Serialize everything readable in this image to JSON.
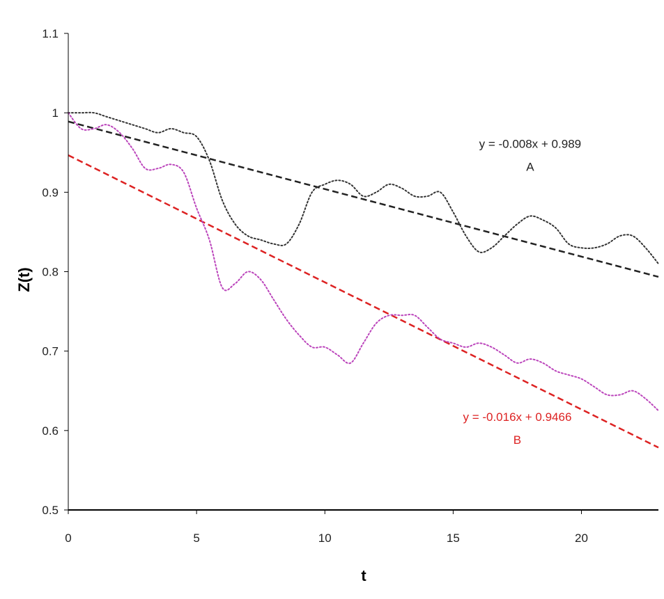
{
  "chart_data": {
    "type": "line",
    "xlabel": "t",
    "ylabel": "Z(t)",
    "xlim": [
      0,
      23
    ],
    "ylim": [
      0.5,
      1.1
    ],
    "x_ticks": [
      0,
      5,
      10,
      15,
      20
    ],
    "x_tick_labels": [
      "0",
      "5",
      "10",
      "15",
      "20"
    ],
    "y_ticks": [
      0.5,
      0.6,
      0.7,
      0.8,
      0.9,
      1.0,
      1.1
    ],
    "y_tick_labels": [
      "0.5",
      "0.6",
      "0.7",
      "0.8",
      "0.9",
      "1",
      "1.1"
    ],
    "grid": false,
    "series": [
      {
        "name": "A",
        "color": "#333333",
        "style": "dotted",
        "x": [
          0,
          0.5,
          1,
          1.5,
          2,
          2.5,
          3,
          3.5,
          4,
          4.5,
          5,
          5.5,
          6,
          6.5,
          7,
          7.5,
          8,
          8.5,
          9,
          9.5,
          10,
          10.5,
          11,
          11.5,
          12,
          12.5,
          13,
          13.5,
          14,
          14.5,
          15,
          15.5,
          16,
          16.5,
          17,
          17.5,
          18,
          18.5,
          19,
          19.5,
          20,
          20.5,
          21,
          21.5,
          22,
          22.5,
          23
        ],
        "y": [
          1.0,
          1.0,
          1.0,
          0.995,
          0.99,
          0.985,
          0.98,
          0.975,
          0.98,
          0.975,
          0.97,
          0.94,
          0.89,
          0.86,
          0.845,
          0.84,
          0.835,
          0.835,
          0.86,
          0.9,
          0.91,
          0.915,
          0.91,
          0.895,
          0.9,
          0.91,
          0.905,
          0.895,
          0.895,
          0.9,
          0.875,
          0.845,
          0.825,
          0.83,
          0.845,
          0.86,
          0.87,
          0.865,
          0.855,
          0.835,
          0.83,
          0.83,
          0.835,
          0.845,
          0.845,
          0.83,
          0.81
        ]
      },
      {
        "name": "B",
        "color": "#bb44bb",
        "style": "dotted",
        "x": [
          0,
          0.5,
          1,
          1.5,
          2,
          2.5,
          3,
          3.5,
          4,
          4.5,
          5,
          5.5,
          6,
          6.5,
          7,
          7.5,
          8,
          8.5,
          9,
          9.5,
          10,
          10.5,
          11,
          11.5,
          12,
          12.5,
          13,
          13.5,
          14,
          14.5,
          15,
          15.5,
          16,
          16.5,
          17,
          17.5,
          18,
          18.5,
          19,
          19.5,
          20,
          20.5,
          21,
          21.5,
          22,
          22.5,
          23
        ],
        "y": [
          1.0,
          0.98,
          0.98,
          0.985,
          0.975,
          0.955,
          0.93,
          0.93,
          0.935,
          0.925,
          0.88,
          0.84,
          0.78,
          0.785,
          0.8,
          0.79,
          0.765,
          0.74,
          0.72,
          0.705,
          0.705,
          0.695,
          0.685,
          0.71,
          0.735,
          0.745,
          0.745,
          0.745,
          0.73,
          0.715,
          0.71,
          0.705,
          0.71,
          0.705,
          0.695,
          0.685,
          0.69,
          0.685,
          0.675,
          0.67,
          0.665,
          0.655,
          0.645,
          0.645,
          0.65,
          0.64,
          0.625
        ]
      }
    ],
    "trendlines": [
      {
        "label": "A",
        "equation": "y = -0.008x + 0.989",
        "slope": -0.0085,
        "intercept": 0.989,
        "color": "#222222",
        "style": "dashed"
      },
      {
        "label": "B",
        "equation": "y = -0.016x + 0.9466",
        "slope": -0.016,
        "intercept": 0.9466,
        "color": "#dd2222",
        "style": "dashed"
      }
    ],
    "annotations": [
      {
        "text": "y = -0.008x + 0.989",
        "x": 18.0,
        "y": 0.956,
        "color": "#222222"
      },
      {
        "text": "A",
        "x": 18.0,
        "y": 0.927,
        "color": "#222222"
      },
      {
        "text": "y = -0.016x + 0.9466",
        "x": 17.5,
        "y": 0.612,
        "color": "#dd2222"
      },
      {
        "text": "B",
        "x": 17.5,
        "y": 0.583,
        "color": "#dd2222"
      }
    ]
  }
}
